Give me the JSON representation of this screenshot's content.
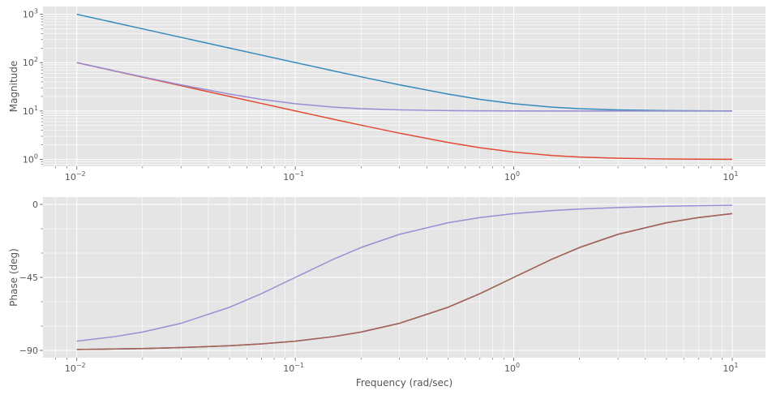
{
  "chart_data": [
    {
      "type": "line",
      "title": "",
      "xlabel": "",
      "ylabel": "Magnitude",
      "xscale": "log",
      "yscale": "log",
      "xlim": [
        0.007,
        14.2
      ],
      "ylim": [
        0.72,
        1450
      ],
      "x_ticks": [
        {
          "value": 0.01,
          "base": "10",
          "exp": "−2"
        },
        {
          "value": 0.1,
          "base": "10",
          "exp": "−1"
        },
        {
          "value": 1,
          "base": "10",
          "exp": "0"
        },
        {
          "value": 10,
          "base": "10",
          "exp": "1"
        }
      ],
      "y_ticks": [
        {
          "value": 1,
          "base": "10",
          "exp": "0"
        },
        {
          "value": 10,
          "base": "10",
          "exp": "1"
        },
        {
          "value": 100,
          "base": "10",
          "exp": "2"
        },
        {
          "value": 1000,
          "base": "10",
          "exp": "3"
        }
      ],
      "grid": true,
      "x": [
        0.01,
        0.015,
        0.02,
        0.03,
        0.05,
        0.07,
        0.1,
        0.15,
        0.2,
        0.3,
        0.5,
        0.7,
        1,
        1.5,
        2,
        3,
        5,
        7,
        10
      ],
      "series": [
        {
          "color": "#348abd",
          "values": [
            1000,
            666.7,
            500.1,
            333.5,
            200.2,
            143.2,
            100.5,
            67.4,
            51.0,
            34.8,
            22.4,
            17.4,
            14.14,
            12.02,
            11.18,
            10.54,
            10.2,
            10.1,
            10.05
          ]
        },
        {
          "color": "#e24a33",
          "values": [
            100,
            66.7,
            50.0,
            33.35,
            20.02,
            14.32,
            10.05,
            6.74,
            5.1,
            3.48,
            2.24,
            1.74,
            1.414,
            1.202,
            1.118,
            1.054,
            1.02,
            1.01,
            1.005
          ]
        },
        {
          "color": "#988ed5",
          "values": [
            100.5,
            67.4,
            51.0,
            34.8,
            22.4,
            17.4,
            14.14,
            12.02,
            11.18,
            10.54,
            10.2,
            10.1,
            10.05,
            10.02,
            10.01,
            10.006,
            10.002,
            10.001,
            10.0
          ]
        }
      ]
    },
    {
      "type": "line",
      "title": "",
      "xlabel": "Frequency (rad/sec)",
      "ylabel": "Phase (deg)",
      "xscale": "log",
      "yscale": "linear",
      "xlim": [
        0.007,
        14.2
      ],
      "ylim": [
        -94.5,
        4.5
      ],
      "x_ticks": [
        {
          "value": 0.01,
          "base": "10",
          "exp": "−2"
        },
        {
          "value": 0.1,
          "base": "10",
          "exp": "−1"
        },
        {
          "value": 1,
          "base": "10",
          "exp": "0"
        },
        {
          "value": 10,
          "base": "10",
          "exp": "1"
        }
      ],
      "y_ticks": [
        {
          "value": 0,
          "label": "0"
        },
        {
          "value": -45,
          "label": "−45"
        },
        {
          "value": -90,
          "label": "−90"
        }
      ],
      "grid": true,
      "x": [
        0.01,
        0.015,
        0.02,
        0.03,
        0.05,
        0.07,
        0.1,
        0.15,
        0.2,
        0.3,
        0.5,
        0.7,
        1,
        1.5,
        2,
        3,
        5,
        7,
        10
      ],
      "series": [
        {
          "color": "#348abd",
          "values": [
            -89.43,
            -89.14,
            -88.85,
            -88.28,
            -87.14,
            -86.0,
            -84.29,
            -81.47,
            -78.69,
            -73.3,
            -63.43,
            -55.01,
            -45.0,
            -33.69,
            -26.57,
            -18.43,
            -11.31,
            -8.13,
            -5.71
          ]
        },
        {
          "color": "#e24a33",
          "values": [
            -89.43,
            -89.14,
            -88.85,
            -88.28,
            -87.14,
            -86.0,
            -84.29,
            -81.47,
            -78.69,
            -73.3,
            -63.43,
            -55.01,
            -45.0,
            -33.69,
            -26.57,
            -18.43,
            -11.31,
            -8.13,
            -5.71
          ]
        },
        {
          "color": "#777777",
          "opacity": 0.55,
          "values": [
            -89.43,
            -89.14,
            -88.85,
            -88.28,
            -87.14,
            -86.0,
            -84.29,
            -81.47,
            -78.69,
            -73.3,
            -63.43,
            -55.01,
            -45.0,
            -33.69,
            -26.57,
            -18.43,
            -11.31,
            -8.13,
            -5.71
          ]
        },
        {
          "color": "#988ed5",
          "values": [
            -84.29,
            -81.47,
            -78.69,
            -73.3,
            -63.43,
            -55.01,
            -45.0,
            -33.69,
            -26.57,
            -18.43,
            -11.31,
            -8.13,
            -5.71,
            -3.81,
            -2.86,
            -1.91,
            -1.15,
            -0.82,
            -0.57
          ]
        }
      ]
    }
  ]
}
